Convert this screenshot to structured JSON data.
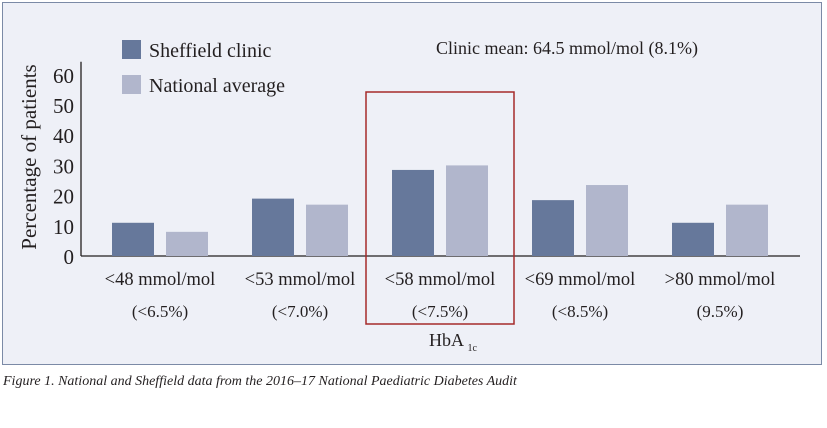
{
  "chart_data": {
    "type": "bar",
    "categories": [
      {
        "line1": "<48 mmol/mol",
        "line2": "(<6.5%)"
      },
      {
        "line1": "<53 mmol/mol",
        "line2": "(<7.0%)"
      },
      {
        "line1": "<58 mmol/mol",
        "line2": "(<7.5%)"
      },
      {
        "line1": "<69 mmol/mol",
        "line2": "(<8.5%)"
      },
      {
        "line1": ">80 mmol/mol",
        "line2": "(9.5%)"
      }
    ],
    "series": [
      {
        "name": "Sheffield clinic",
        "values": [
          11,
          19,
          28.5,
          18.5,
          11
        ],
        "color": "#66789b"
      },
      {
        "name": "National average",
        "values": [
          8,
          17,
          30,
          23.5,
          17
        ],
        "color": "#b1b6cc"
      }
    ],
    "ylabel": "Percentage of patients",
    "xlabel": {
      "main": "HbA",
      "subscript": "1c"
    },
    "ylim": [
      0,
      65
    ],
    "yticks": [
      0,
      10,
      20,
      30,
      40,
      50,
      60
    ],
    "annotation": "Clinic mean: 64.5 mmol/mol (8.1%)",
    "highlighted_category_index": 2,
    "highlight_color": "#a52a2a",
    "legend_position": "top-left",
    "grid": false
  },
  "caption": "Figure 1. National and Sheffield data from the 2016–17 National Paediatric Diabetes Audit"
}
